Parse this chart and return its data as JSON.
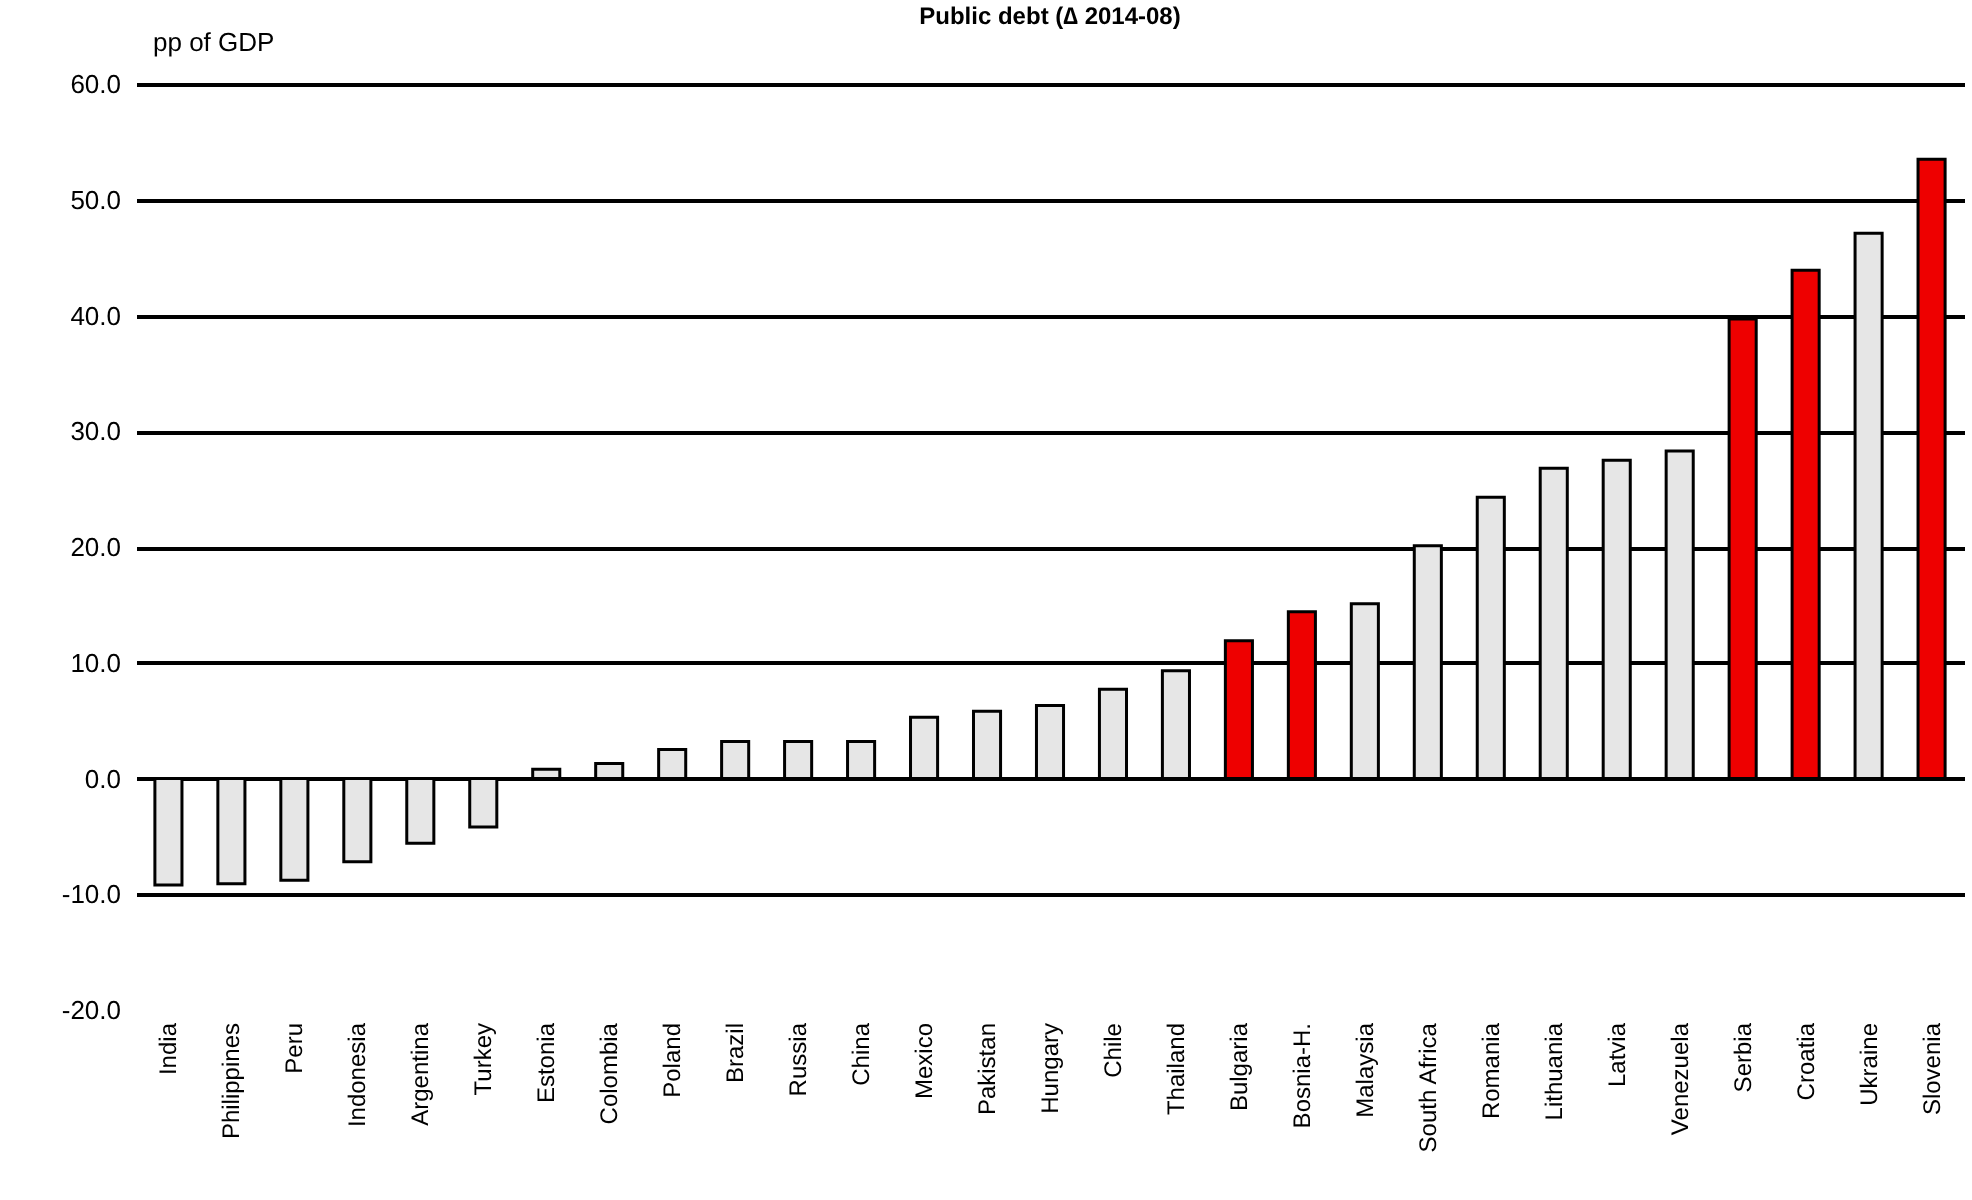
{
  "chart_data": {
    "type": "bar",
    "title": "Public debt (∆ 2014-08)",
    "ylabel": "pp of GDP",
    "categories": [
      "India",
      "Philippines",
      "Peru",
      "Indonesia",
      "Argentina",
      "Turkey",
      "Estonia",
      "Colombia",
      "Poland",
      "Brazil",
      "Russia",
      "China",
      "Mexico",
      "Pakistan",
      "Hungary",
      "Chile",
      "Thailand",
      "Bulgaria",
      "Bosnia-H.",
      "Malaysia",
      "South Africa",
      "Romania",
      "Lithuania",
      "Latvia",
      "Venezuela",
      "Serbia",
      "Croatia",
      "Ukraine",
      "Slovenia"
    ],
    "values": [
      -9.2,
      -9.1,
      -8.8,
      -7.2,
      -5.6,
      -4.2,
      0.8,
      1.3,
      2.5,
      3.2,
      3.2,
      3.2,
      5.3,
      5.8,
      6.3,
      7.7,
      9.3,
      11.9,
      14.4,
      15.1,
      20.1,
      24.3,
      26.8,
      27.5,
      28.3,
      39.7,
      43.9,
      47.1,
      53.5
    ],
    "colors": [
      "#e6e6e6",
      "#e6e6e6",
      "#e6e6e6",
      "#e6e6e6",
      "#e6e6e6",
      "#e6e6e6",
      "#e6e6e6",
      "#e6e6e6",
      "#e6e6e6",
      "#e6e6e6",
      "#e6e6e6",
      "#e6e6e6",
      "#e6e6e6",
      "#e6e6e6",
      "#e6e6e6",
      "#e6e6e6",
      "#e6e6e6",
      "#ee0000",
      "#ee0000",
      "#e6e6e6",
      "#e6e6e6",
      "#e6e6e6",
      "#e6e6e6",
      "#e6e6e6",
      "#e6e6e6",
      "#ee0000",
      "#ee0000",
      "#e6e6e6",
      "#ee0000"
    ],
    "ylim": [
      -20,
      60
    ],
    "yticks": [
      {
        "value": -20,
        "label": "-20.0"
      },
      {
        "value": -10,
        "label": "-10.0"
      },
      {
        "value": 0,
        "label": "0.0"
      },
      {
        "value": 10,
        "label": "10.0"
      },
      {
        "value": 20,
        "label": "20.0"
      },
      {
        "value": 30,
        "label": "30.0"
      },
      {
        "value": 40,
        "label": "40.0"
      },
      {
        "value": 50,
        "label": "50.0"
      },
      {
        "value": 60,
        "label": "60.0"
      }
    ],
    "grid": "y"
  }
}
